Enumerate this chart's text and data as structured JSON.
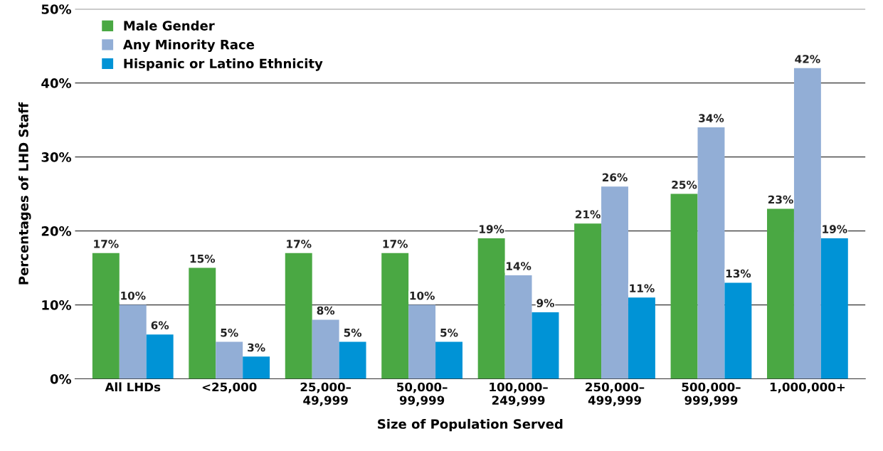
{
  "chart_data": {
    "type": "bar",
    "xlabel": "Size of Population Served",
    "ylabel": "Percentages of LHD Staff",
    "categories": [
      "All LHDs",
      "<25,000",
      "25,000–\n49,999",
      "50,000–\n99,999",
      "100,000–\n249,999",
      "250,000–\n499,999",
      "500,000–\n999,999",
      "1,000,000+"
    ],
    "series": [
      {
        "name": "Male Gender",
        "color": "#4aa843",
        "values": [
          17,
          15,
          17,
          17,
          19,
          21,
          25,
          23
        ],
        "value_labels": [
          "17%",
          "15%",
          "17%",
          "17%",
          "19%",
          "21%",
          "25%",
          "23%"
        ]
      },
      {
        "name": "Any Minority Race",
        "color": "#92aed6",
        "values": [
          10,
          5,
          8,
          10,
          14,
          26,
          34,
          42
        ],
        "value_labels": [
          "10%",
          "5%",
          "8%",
          "10%",
          "14%",
          "26%",
          "34%",
          "42%"
        ]
      },
      {
        "name": "Hispanic or Latino Ethnicity",
        "color": "#0093d6",
        "values": [
          6,
          3,
          5,
          5,
          9,
          11,
          13,
          19
        ],
        "value_labels": [
          "6%",
          "3%",
          "5%",
          "5%",
          "9%",
          "11%",
          "13%",
          "19%"
        ]
      }
    ],
    "ylim": [
      0,
      50
    ],
    "yticks": [
      {
        "value": 0,
        "label": "0%"
      },
      {
        "value": 10,
        "label": "10%"
      },
      {
        "value": 20,
        "label": "20%"
      },
      {
        "value": 30,
        "label": "30%"
      },
      {
        "value": 40,
        "label": "40%"
      },
      {
        "value": 50,
        "label": "50%"
      }
    ],
    "grid": "y",
    "legend": "top left"
  }
}
